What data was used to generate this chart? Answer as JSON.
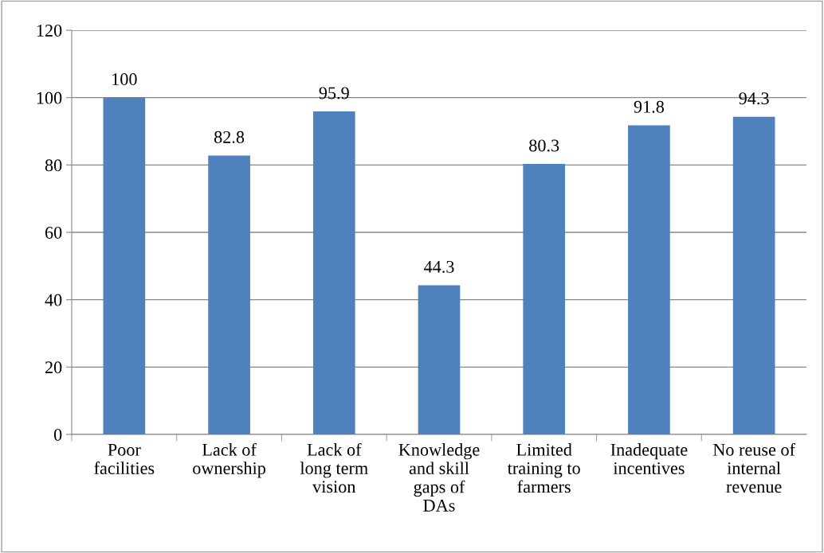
{
  "chart_data": {
    "type": "bar",
    "categories": [
      "Poor\nfacilities",
      "Lack of\nownership",
      "Lack of\nlong term\nvision",
      "Knowledge\nand skill\ngaps of\nDAs",
      "Limited\ntraining to\nfarmers",
      "Inadequate\nincentives",
      "No reuse of\ninternal\nrevenue"
    ],
    "values": [
      100,
      82.8,
      95.9,
      44.3,
      80.3,
      91.8,
      94.3
    ],
    "color": "#4f81bd",
    "ylim": [
      0,
      120
    ],
    "yticks": [
      0,
      20,
      40,
      60,
      80,
      100,
      120
    ],
    "grid": "y",
    "data_labels": true
  }
}
